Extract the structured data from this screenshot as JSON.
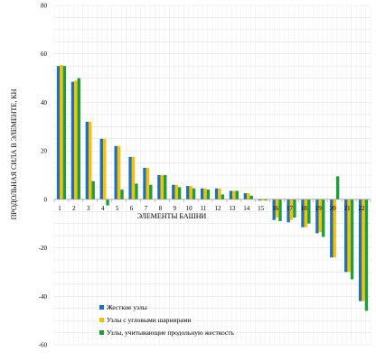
{
  "chart_data": {
    "type": "bar",
    "title": "",
    "xlabel": "ЭЛЕМЕНТЫ БАШНИ",
    "ylabel": "ПРОДОЛЬНАЯ СИЛА В ЭЛЕМЕНТЕ, КН",
    "ylim": [
      -60,
      80
    ],
    "ytick_step": 20,
    "grid": true,
    "legend_position": "bottom-left",
    "categories": [
      "1",
      "2",
      "3",
      "4",
      "5",
      "6",
      "7",
      "8",
      "9",
      "10",
      "11",
      "12",
      "13",
      "14",
      "15",
      "16",
      "17",
      "18",
      "19",
      "20",
      "21",
      "22"
    ],
    "series": [
      {
        "name": "Жесткие узлы",
        "color": "#1f6fbf",
        "values": [
          55,
          48.5,
          32,
          25,
          22,
          17.5,
          13,
          10,
          6,
          5.5,
          4.5,
          4.5,
          3.5,
          2.5,
          -0.5,
          -8.5,
          -9.5,
          -11.5,
          -14,
          -24,
          -30,
          -42
        ]
      },
      {
        "name": "Узлы с угловыми шарнирами",
        "color": "#f5c200",
        "values": [
          55.5,
          49,
          32,
          25,
          22,
          17.5,
          13,
          10,
          6,
          5.5,
          4.5,
          4.5,
          3.5,
          2.5,
          -0.5,
          -7.5,
          -8.5,
          -11.5,
          -13.5,
          -24,
          -30,
          -42
        ]
      },
      {
        "name": "Узлы, учитывающие продольную жесткость",
        "color": "#1e9e3a",
        "values": [
          55,
          50,
          7.5,
          -2.5,
          4,
          6.5,
          6,
          10,
          5,
          4.5,
          4,
          2,
          3.5,
          1.5,
          -0.5,
          -9,
          -7.5,
          -10,
          -15.5,
          9.5,
          -33,
          -46
        ]
      }
    ]
  }
}
